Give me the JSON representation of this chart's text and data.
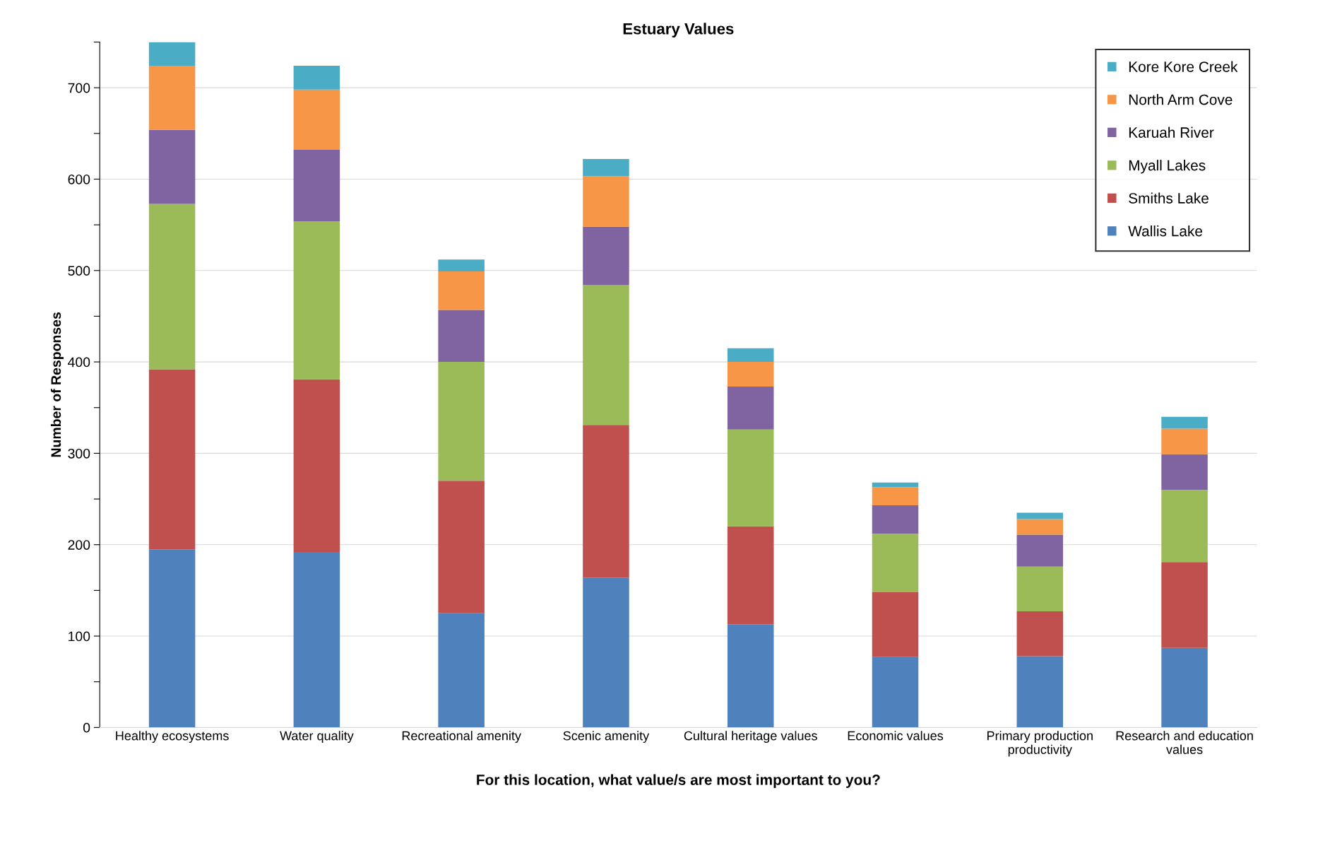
{
  "chart_data": {
    "type": "bar",
    "stacked": true,
    "title": "Estuary Values",
    "xlabel": "For this location, what value/s are most important to you?",
    "ylabel": "Number of Responses",
    "categories": [
      "Healthy ecosystems",
      "Water quality",
      "Recreational amenity",
      "Scenic amenity",
      "Cultural heritage values",
      "Economic values",
      "Primary production\nproductivity",
      "Research and education\nvalues"
    ],
    "series": [
      {
        "name": "Wallis Lake",
        "color": "#4f81bd",
        "values": [
          195,
          192,
          125,
          164,
          113,
          77,
          78,
          87
        ]
      },
      {
        "name": "Smiths Lake",
        "color": "#c0504d",
        "values": [
          197,
          189,
          145,
          167,
          107,
          71,
          49,
          94
        ]
      },
      {
        "name": "Myall Lakes",
        "color": "#9bbb59",
        "values": [
          181,
          173,
          130,
          153,
          106,
          64,
          49,
          79
        ]
      },
      {
        "name": "Karuah River",
        "color": "#8064a2",
        "values": [
          81,
          78,
          57,
          64,
          47,
          31,
          35,
          39
        ]
      },
      {
        "name": "North Arm Cove",
        "color": "#f79646",
        "values": [
          70,
          66,
          42,
          55,
          27,
          20,
          17,
          28
        ]
      },
      {
        "name": "Kore Kore Creek",
        "color": "#4bacc6",
        "values": [
          26,
          26,
          13,
          19,
          15,
          5,
          7,
          13
        ]
      }
    ],
    "ylim": [
      0,
      750
    ],
    "yticks": [
      0,
      {
        "value": 50,
        "label": null
      },
      100,
      {
        "value": 150,
        "label": null
      },
      200,
      {
        "value": 250,
        "label": null
      },
      300,
      {
        "value": 350,
        "label": null
      },
      400,
      {
        "value": 450,
        "label": null
      },
      500,
      {
        "value": 550,
        "label": null
      },
      600,
      {
        "value": 650,
        "label": null
      },
      700,
      {
        "value": 750,
        "label": null
      }
    ],
    "grid": "y",
    "legend": "top right"
  }
}
